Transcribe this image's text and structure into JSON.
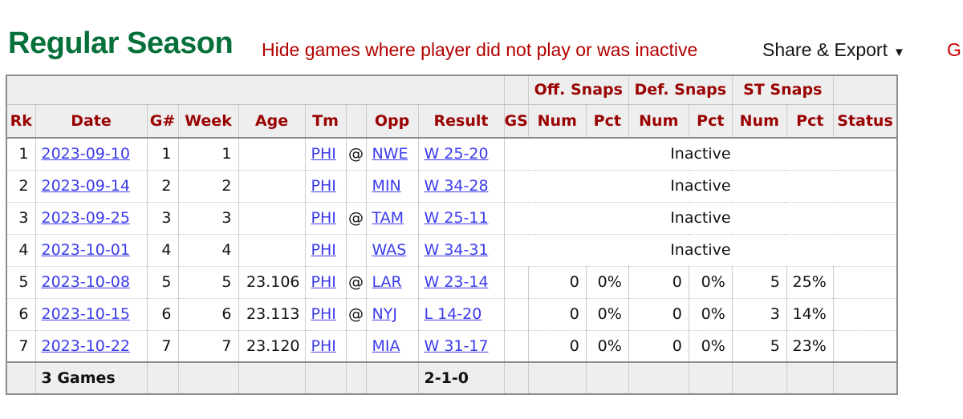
{
  "header": {
    "title": "Regular Season",
    "note": "Hide games where player did not play or was inactive",
    "share_export_label": "Share & Export",
    "share_export_arrow": "▼",
    "glossary_label": "G"
  },
  "table": {
    "column_groups": [
      {
        "label": "Off. Snaps"
      },
      {
        "label": "Def. Snaps"
      },
      {
        "label": "ST Snaps"
      }
    ],
    "columns": [
      {
        "key": "rk",
        "label": "Rk"
      },
      {
        "key": "date",
        "label": "Date"
      },
      {
        "key": "g",
        "label": "G#"
      },
      {
        "key": "week",
        "label": "Week"
      },
      {
        "key": "age",
        "label": "Age"
      },
      {
        "key": "tm",
        "label": "Tm"
      },
      {
        "key": "at",
        "label": ""
      },
      {
        "key": "opp",
        "label": "Opp"
      },
      {
        "key": "result",
        "label": "Result"
      },
      {
        "key": "gs",
        "label": "GS"
      },
      {
        "key": "off_num",
        "label": "Num"
      },
      {
        "key": "off_pct",
        "label": "Pct"
      },
      {
        "key": "def_num",
        "label": "Num"
      },
      {
        "key": "def_pct",
        "label": "Pct"
      },
      {
        "key": "st_num",
        "label": "Num"
      },
      {
        "key": "st_pct",
        "label": "Pct"
      },
      {
        "key": "status",
        "label": "Status"
      }
    ],
    "inactive_label": "Inactive",
    "rows": [
      {
        "rk": "1",
        "date": "2023-09-10",
        "g": "1",
        "week": "1",
        "age": "",
        "tm": "PHI",
        "at": "@",
        "opp": "NWE",
        "result": "W 25-20",
        "inactive": true
      },
      {
        "rk": "2",
        "date": "2023-09-14",
        "g": "2",
        "week": "2",
        "age": "",
        "tm": "PHI",
        "at": "",
        "opp": "MIN",
        "result": "W 34-28",
        "inactive": true
      },
      {
        "rk": "3",
        "date": "2023-09-25",
        "g": "3",
        "week": "3",
        "age": "",
        "tm": "PHI",
        "at": "@",
        "opp": "TAM",
        "result": "W 25-11",
        "inactive": true
      },
      {
        "rk": "4",
        "date": "2023-10-01",
        "g": "4",
        "week": "4",
        "age": "",
        "tm": "PHI",
        "at": "",
        "opp": "WAS",
        "result": "W 34-31",
        "inactive": true
      },
      {
        "rk": "5",
        "date": "2023-10-08",
        "g": "5",
        "week": "5",
        "age": "23.106",
        "tm": "PHI",
        "at": "@",
        "opp": "LAR",
        "result": "W 23-14",
        "inactive": false,
        "gs": "",
        "off_num": "0",
        "off_pct": "0%",
        "def_num": "0",
        "def_pct": "0%",
        "st_num": "5",
        "st_pct": "25%",
        "status": ""
      },
      {
        "rk": "6",
        "date": "2023-10-15",
        "g": "6",
        "week": "6",
        "age": "23.113",
        "tm": "PHI",
        "at": "@",
        "opp": "NYJ",
        "result": "L 14-20",
        "inactive": false,
        "gs": "",
        "off_num": "0",
        "off_pct": "0%",
        "def_num": "0",
        "def_pct": "0%",
        "st_num": "3",
        "st_pct": "14%",
        "status": ""
      },
      {
        "rk": "7",
        "date": "2023-10-22",
        "g": "7",
        "week": "7",
        "age": "23.120",
        "tm": "PHI",
        "at": "",
        "opp": "MIA",
        "result": "W 31-17",
        "inactive": false,
        "gs": "",
        "off_num": "0",
        "off_pct": "0%",
        "def_num": "0",
        "def_pct": "0%",
        "st_num": "5",
        "st_pct": "23%",
        "status": ""
      }
    ],
    "footer": {
      "games_label": "3 Games",
      "record": "2-1-0"
    }
  },
  "colors": {
    "title-green": "#05703a",
    "note-red": "#b30000",
    "header-red": "#9a0202",
    "link-blue": "#3b3bee",
    "glossary-red": "#cc0000"
  }
}
